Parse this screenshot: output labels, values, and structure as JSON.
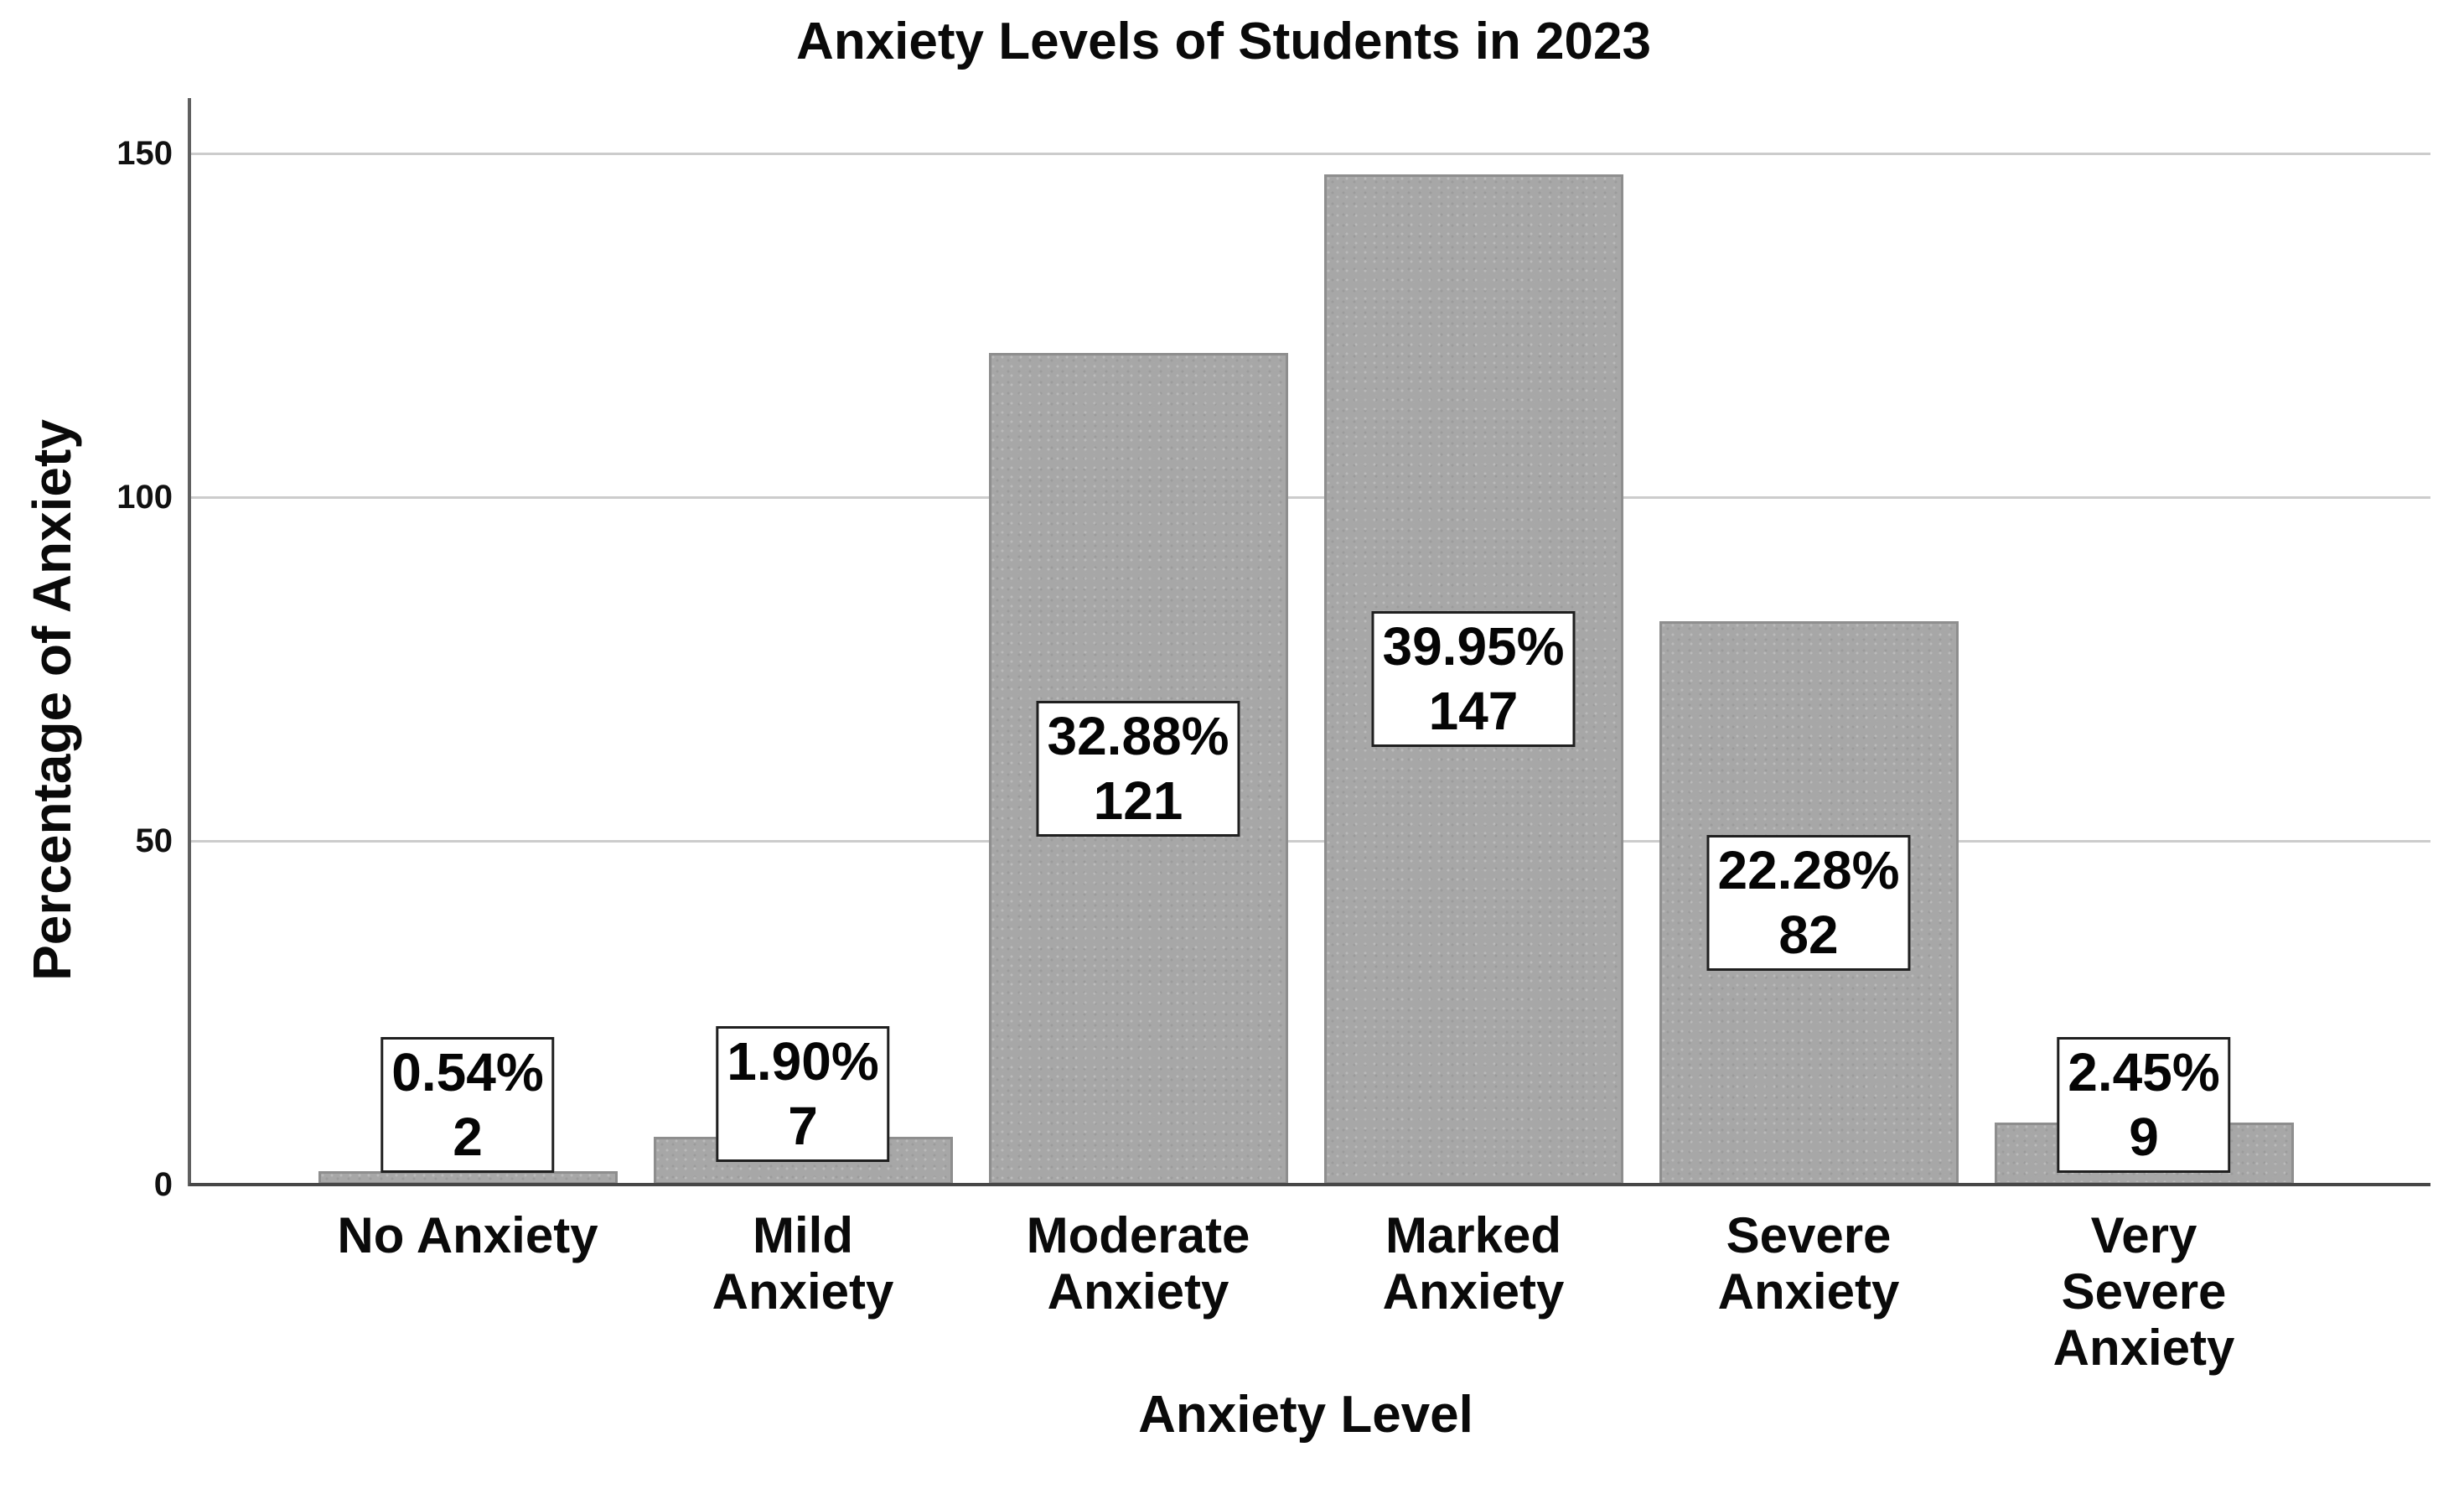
{
  "chart_data": {
    "type": "bar",
    "title": "Anxiety Levels of Students in 2023",
    "xlabel": "Anxiety Level",
    "ylabel": "Percentage of Anxiety",
    "categories": [
      "No Anxiety",
      "Mild Anxiety",
      "Moderate Anxiety",
      "Marked Anxiety",
      "Severe Anxiety",
      "Very Severe Anxiety"
    ],
    "category_label_lines": [
      [
        "No Anxiety"
      ],
      [
        "Mild",
        "Anxiety"
      ],
      [
        "Moderate",
        "Anxiety"
      ],
      [
        "Marked",
        "Anxiety"
      ],
      [
        "Severe",
        "Anxiety"
      ],
      [
        "Very",
        "Severe",
        "Anxiety"
      ]
    ],
    "values": [
      2,
      7,
      121,
      147,
      82,
      9
    ],
    "percent_labels": [
      "0.54%",
      "1.90%",
      "32.88%",
      "39.95%",
      "22.28%",
      "2.45%"
    ],
    "count_labels": [
      "2",
      "7",
      "121",
      "147",
      "82",
      "9"
    ],
    "ylim": [
      0,
      158
    ],
    "yticks": [
      0,
      50,
      100,
      150
    ],
    "grid": true,
    "legend": false,
    "colors": {
      "bar_fill": "#a7a7a7",
      "bar_border": "#8e8e8e",
      "gridline": "#cccccc",
      "y_axis_line": "#606060",
      "x_axis_line": "#474747",
      "label_box_bg": "#ffffff",
      "label_box_border": "#1f1f1f",
      "text": "#0a0a0a",
      "background": "#ffffff"
    }
  }
}
